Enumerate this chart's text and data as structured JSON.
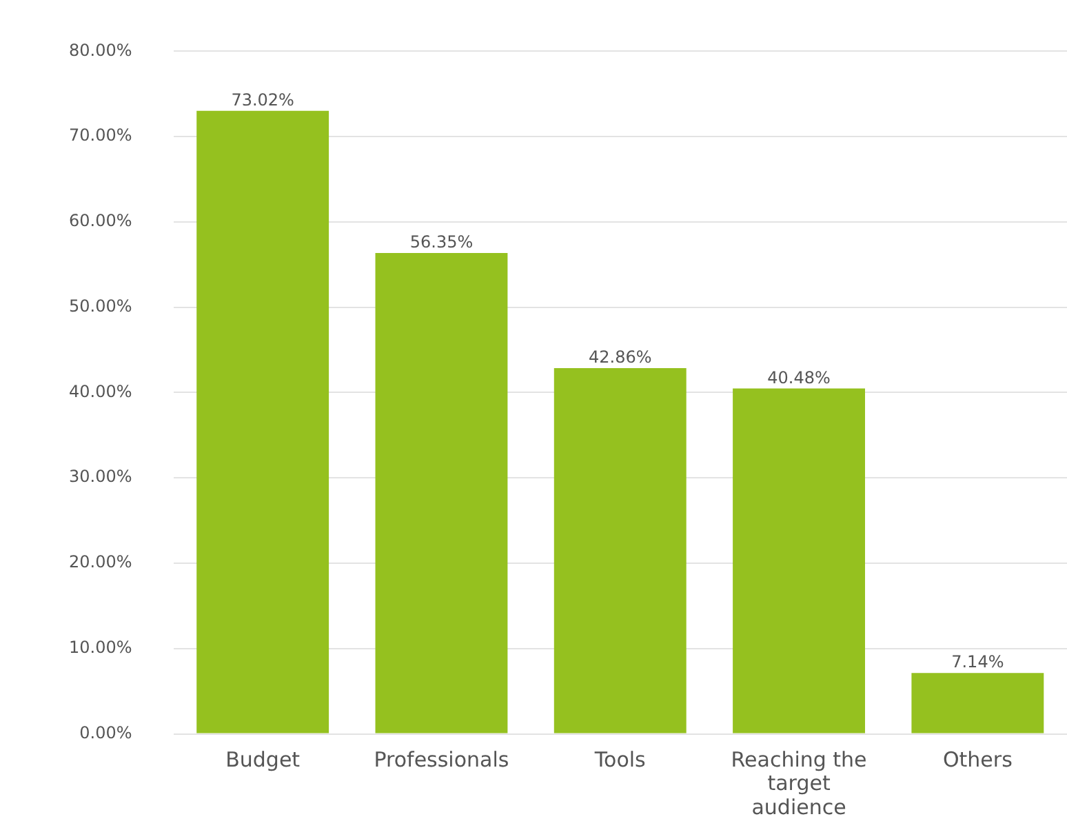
{
  "chart_data": {
    "type": "bar",
    "categories": [
      "Budget",
      "Professionals",
      "Tools",
      "Reaching the target audience",
      "Others"
    ],
    "values": [
      73.02,
      56.35,
      42.86,
      40.48,
      7.14
    ],
    "value_labels": [
      "73.02%",
      "56.35%",
      "42.86%",
      "40.48%",
      "7.14%"
    ],
    "color": "#95c11f",
    "ylim": [
      0,
      80
    ],
    "yticks": [
      {
        "value": 0,
        "label": "0.00%"
      },
      {
        "value": 10,
        "label": "10.00%"
      },
      {
        "value": 20,
        "label": "20.00%"
      },
      {
        "value": 30,
        "label": "30.00%"
      },
      {
        "value": 40,
        "label": "40.00%"
      },
      {
        "value": 50,
        "label": "50.00%"
      },
      {
        "value": 60,
        "label": "60.00%"
      },
      {
        "value": 70,
        "label": "70.00%"
      },
      {
        "value": 80,
        "label": "80.00%"
      }
    ],
    "grid": "y",
    "legend": false
  }
}
